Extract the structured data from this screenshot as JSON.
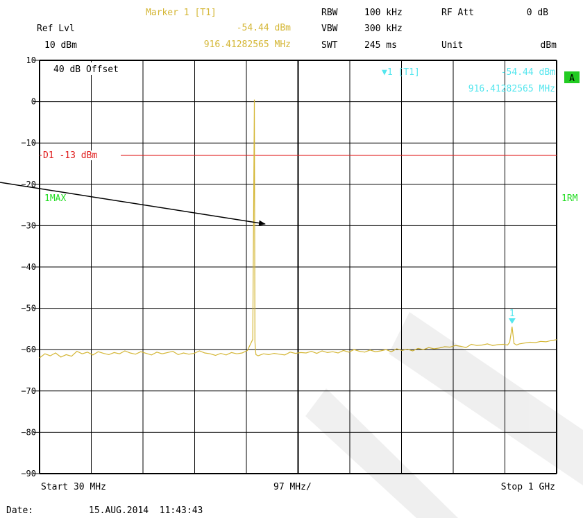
{
  "header": {
    "marker_title": "Marker 1 [T1]",
    "marker_level": "-54.44 dBm",
    "marker_freq": "916.41282565 MHz",
    "ref_lvl_label": "Ref Lvl",
    "ref_lvl_value": "10 dBm",
    "rbw_label": "RBW",
    "rbw_value": "100 kHz",
    "vbw_label": "VBW",
    "vbw_value": "300 kHz",
    "swt_label": "SWT",
    "swt_value": "245 ms",
    "rfatt_label": "RF Att",
    "rfatt_value": "0 dB",
    "unit_label": "Unit",
    "unit_value": "dBm"
  },
  "plot": {
    "offset_label": "40 dB Offset",
    "marker_readout_tag": "▼1 [T1]",
    "marker_readout_level": "-54.44 dBm",
    "marker_readout_freq": "916.41282565 MHz",
    "marker_number": "1",
    "a_badge": "A",
    "trace_mode": "1MAX",
    "right_label": "1RM",
    "display_line_label": "D1 -13 dBm"
  },
  "footer": {
    "start": "Start 30 MHz",
    "span": "97 MHz/",
    "stop": "Stop 1 GHz",
    "date_label": "Date:",
    "date_value": "15.AUG.2014  11:43:43"
  },
  "colors": {
    "trace": "#d4b634",
    "marker": "#55e6ee",
    "display_line": "#e02020",
    "trace_mode": "#22dd22",
    "badge": "#22cc22",
    "grid": "#000000",
    "header_marker": "#d4b634"
  },
  "chart_data": {
    "type": "line",
    "x_unit": "MHz",
    "y_unit": "dBm",
    "xlim": [
      30,
      1000
    ],
    "ylim": [
      -90,
      10
    ],
    "yticks": [
      10,
      0,
      -10,
      -20,
      -30,
      -40,
      -50,
      -60,
      -70,
      -80,
      -90
    ],
    "grid": true,
    "display_line": {
      "name": "D1",
      "value": -13
    },
    "marker": {
      "x": 916.41282565,
      "y": -54.44
    },
    "series": [
      {
        "x": [
          30,
          40,
          50,
          60,
          70,
          80,
          90,
          100,
          110,
          120,
          130,
          140,
          150,
          160,
          170,
          180,
          190,
          200,
          210,
          220,
          230,
          240,
          250,
          260,
          270,
          280,
          290,
          300,
          310,
          320,
          330,
          340,
          350,
          360,
          370,
          380,
          390,
          400,
          410,
          420,
          430,
          433,
          434,
          435,
          436,
          440,
          450,
          460,
          470,
          480,
          490,
          500,
          510,
          520,
          530,
          540,
          550,
          560,
          570,
          580,
          590,
          600,
          610,
          620,
          630,
          640,
          650,
          660,
          670,
          680,
          690,
          700,
          710,
          720,
          730,
          740,
          750,
          760,
          770,
          780,
          790,
          800,
          810,
          820,
          830,
          840,
          850,
          860,
          870,
          880,
          890,
          900,
          908,
          912,
          916.41,
          920,
          925,
          930,
          940,
          950,
          960,
          970,
          980,
          990,
          1000
        ],
        "values": [
          -62.0,
          -61.0,
          -61.5,
          -60.8,
          -61.8,
          -61.2,
          -61.6,
          -60.4,
          -61.0,
          -60.6,
          -61.3,
          -60.5,
          -60.9,
          -61.2,
          -60.7,
          -61.0,
          -60.3,
          -60.8,
          -61.1,
          -60.5,
          -60.9,
          -61.3,
          -60.6,
          -61.0,
          -60.7,
          -60.4,
          -61.2,
          -60.8,
          -61.1,
          -60.9,
          -60.3,
          -60.8,
          -61.0,
          -61.4,
          -60.9,
          -61.3,
          -60.7,
          -61.0,
          -60.8,
          -60.2,
          -57.5,
          0.5,
          -58.0,
          -60.1,
          -61.2,
          -61.5,
          -61.0,
          -61.2,
          -60.9,
          -61.1,
          -61.3,
          -60.6,
          -60.9,
          -60.7,
          -60.8,
          -60.4,
          -60.9,
          -60.3,
          -60.7,
          -60.5,
          -60.8,
          -60.2,
          -60.6,
          -60.0,
          -60.4,
          -60.6,
          -60.1,
          -60.5,
          -60.3,
          -60.0,
          -60.5,
          -59.8,
          -60.2,
          -59.9,
          -60.3,
          -59.7,
          -60.0,
          -59.5,
          -59.8,
          -59.6,
          -59.3,
          -59.4,
          -59.0,
          -59.2,
          -59.5,
          -58.7,
          -59.0,
          -58.9,
          -58.6,
          -59.0,
          -58.8,
          -58.7,
          -58.9,
          -58.2,
          -54.44,
          -58.5,
          -58.9,
          -58.6,
          -58.4,
          -58.2,
          -58.3,
          -58.0,
          -58.1,
          -57.8,
          -57.6
        ]
      }
    ]
  }
}
